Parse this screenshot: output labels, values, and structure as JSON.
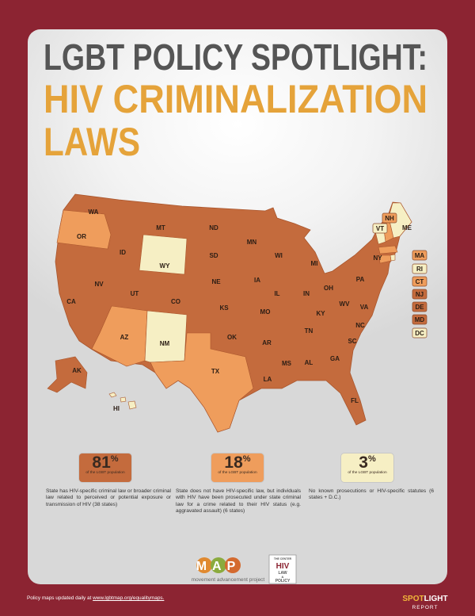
{
  "header": {
    "title_line1": "LGBT POLICY SPOTLIGHT:",
    "title_line2": "HIV CRIMINALIZATION",
    "title_line3": "LAWS"
  },
  "map": {
    "states": [
      {
        "label": "WA",
        "category": 0
      },
      {
        "label": "OR",
        "category": 1
      },
      {
        "label": "ID",
        "category": 0
      },
      {
        "label": "MT",
        "category": 0
      },
      {
        "label": "WY",
        "category": 2
      },
      {
        "label": "ND",
        "category": 0
      },
      {
        "label": "SD",
        "category": 0
      },
      {
        "label": "NE",
        "category": 0
      },
      {
        "label": "CO",
        "category": 0
      },
      {
        "label": "UT",
        "category": 0
      },
      {
        "label": "NV",
        "category": 0
      },
      {
        "label": "CA",
        "category": 0
      },
      {
        "label": "AZ",
        "category": 1
      },
      {
        "label": "NM",
        "category": 2
      },
      {
        "label": "TX",
        "category": 1
      },
      {
        "label": "OK",
        "category": 0
      },
      {
        "label": "KS",
        "category": 0
      },
      {
        "label": "MN",
        "category": 0
      },
      {
        "label": "IA",
        "category": 0
      },
      {
        "label": "MO",
        "category": 0
      },
      {
        "label": "AR",
        "category": 0
      },
      {
        "label": "LA",
        "category": 0
      },
      {
        "label": "WI",
        "category": 0
      },
      {
        "label": "IL",
        "category": 0
      },
      {
        "label": "MS",
        "category": 0
      },
      {
        "label": "MI",
        "category": 0
      },
      {
        "label": "IN",
        "category": 0
      },
      {
        "label": "OH",
        "category": 0
      },
      {
        "label": "KY",
        "category": 0
      },
      {
        "label": "TN",
        "category": 0
      },
      {
        "label": "AL",
        "category": 0
      },
      {
        "label": "GA",
        "category": 0
      },
      {
        "label": "FL",
        "category": 0
      },
      {
        "label": "SC",
        "category": 0
      },
      {
        "label": "NC",
        "category": 0
      },
      {
        "label": "VA",
        "category": 0
      },
      {
        "label": "WV",
        "category": 0
      },
      {
        "label": "PA",
        "category": 0
      },
      {
        "label": "NY",
        "category": 0
      },
      {
        "label": "AK",
        "category": 0
      },
      {
        "label": "HI",
        "category": 2
      },
      {
        "label": "NH",
        "category": 1
      },
      {
        "label": "VT",
        "category": 2
      },
      {
        "label": "ME",
        "category": 2
      },
      {
        "label": "MA",
        "category": 1
      },
      {
        "label": "RI",
        "category": 2
      },
      {
        "label": "CT",
        "category": 1
      },
      {
        "label": "NJ",
        "category": 0
      },
      {
        "label": "DE",
        "category": 0
      },
      {
        "label": "MD",
        "category": 0
      },
      {
        "label": "DC",
        "category": 2
      }
    ]
  },
  "legend": [
    {
      "number": "81",
      "sign": "%",
      "caption": "of the LGBT population",
      "color": "#c46b3d",
      "description": "State has HIV-specific criminal law or broader criminal law related to perceived or potential exposure or transmission of HIV (38 states)"
    },
    {
      "number": "18",
      "sign": "%",
      "caption": "of the LGBT population",
      "color": "#ef9d5c",
      "description": "State does not have HIV-specific law, but individuals with HIV have been prosecuted under state criminal law for a crime related to their HIV status (e.g. aggravated assault) (6 states)"
    },
    {
      "number": "3",
      "sign": "%",
      "caption": "of the LGBT population",
      "color": "#f6efc4",
      "description": "No known prosecutions or HIV-specific statutes (6 states + D.C.)"
    }
  ],
  "logos": {
    "map_letters": "MAP",
    "map_name": "movement advancement project",
    "center_lines": [
      "THE CENTER",
      "HIV",
      "LAW",
      "&",
      "POLICY"
    ]
  },
  "footer": {
    "text": "Policy maps updated daily at",
    "link": "www.lgbtmap.org/equalitymaps."
  },
  "badge": {
    "spot": "SPOT",
    "light": "LIGHT",
    "report": "REPORT"
  }
}
